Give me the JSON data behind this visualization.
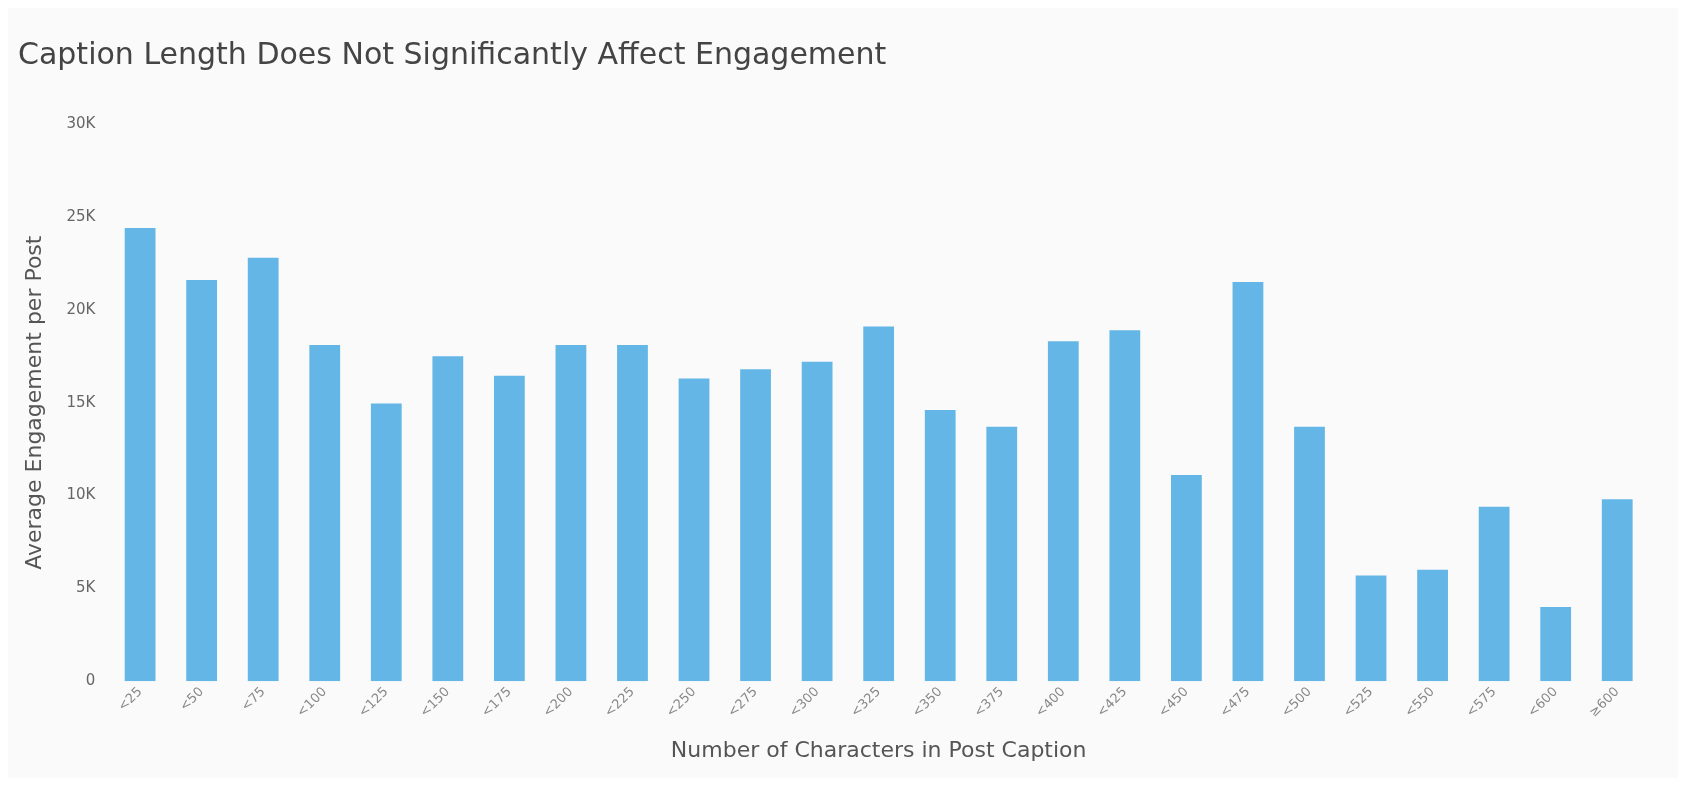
{
  "chart_data": {
    "type": "bar",
    "title": "Caption Length Does Not Significantly Affect Engagement",
    "xlabel": "Number of Characters in Post Caption",
    "ylabel": "Average Engagement per Post",
    "categories": [
      "<25",
      "<50",
      "<75",
      "<100",
      "<125",
      "<150",
      "<175",
      "<200",
      "<225",
      "<250",
      "<275",
      "<300",
      "<325",
      "<350",
      "<375",
      "<400",
      "<425",
      "<450",
      "<475",
      "<500",
      "<525",
      "<550",
      "<575",
      "<600",
      "≥600"
    ],
    "values": [
      24400,
      21600,
      22800,
      18100,
      14950,
      17500,
      16450,
      18100,
      18100,
      16300,
      16800,
      17200,
      19100,
      14600,
      13700,
      18300,
      18900,
      11100,
      21500,
      13700,
      5700,
      6000,
      9400,
      4000,
      9800
    ],
    "color": "#63b6e6",
    "ylim": [
      0,
      30000
    ],
    "yticks": [
      {
        "value": 0,
        "label": "0"
      },
      {
        "value": 5000,
        "label": "5K"
      },
      {
        "value": 10000,
        "label": "10K"
      },
      {
        "value": 15000,
        "label": "15K"
      },
      {
        "value": 20000,
        "label": "20K"
      },
      {
        "value": 25000,
        "label": "25K"
      },
      {
        "value": 30000,
        "label": "30K"
      }
    ],
    "grid": false,
    "legend": false
  }
}
